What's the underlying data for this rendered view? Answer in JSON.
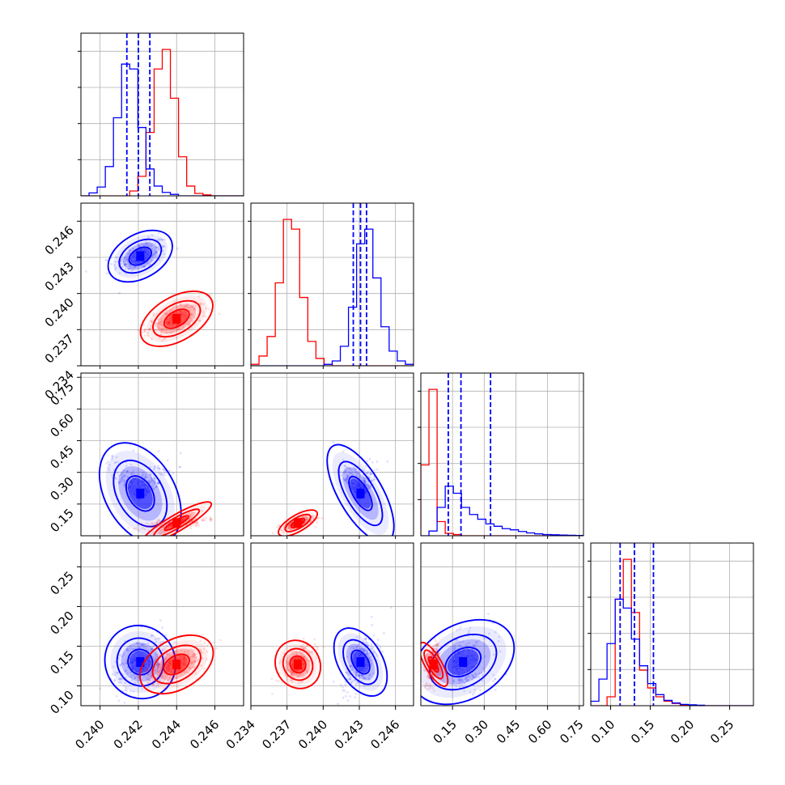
{
  "colors": {
    "series_a": "#0000ff",
    "series_b": "#ff0000",
    "grid": "#b0b0b0",
    "frame": "#000000"
  },
  "chart_data": {
    "type": "corner",
    "parameters": [
      "",
      "",
      "",
      ""
    ],
    "series": [
      {
        "color": "#0000ff",
        "means": [
          0.2421,
          0.2431,
          0.2,
          0.13
        ],
        "sds": [
          0.0007,
          0.0007,
          0.1,
          0.018
        ],
        "quantiles": [
          [
            0.2414,
            0.242,
            0.2426
          ],
          [
            0.2425,
            0.2431,
            0.2436
          ],
          [
            0.13,
            0.19,
            0.33
          ],
          [
            0.112,
            0.13,
            0.154
          ]
        ],
        "hist_fractions": [
          [
            0.0,
            0.006,
            0.018,
            0.06,
            0.16,
            0.27,
            0.26,
            0.14,
            0.055,
            0.02,
            0.007,
            0.003,
            0,
            0,
            0,
            0,
            0,
            0,
            0,
            0
          ],
          [
            0,
            0,
            0,
            0,
            0,
            0,
            0,
            0,
            0,
            0.003,
            0.01,
            0.04,
            0.12,
            0.25,
            0.28,
            0.18,
            0.08,
            0.03,
            0.01,
            0.003
          ],
          [
            0,
            0.02,
            0.12,
            0.21,
            0.18,
            0.12,
            0.09,
            0.07,
            0.05,
            0.04,
            0.03,
            0.025,
            0.018,
            0.012,
            0.008,
            0.005,
            0.004,
            0.003,
            0.002,
            0.001
          ],
          [
            0.01,
            0.06,
            0.14,
            0.24,
            0.22,
            0.15,
            0.09,
            0.05,
            0.025,
            0.012,
            0.006,
            0.003,
            0.002,
            0.001,
            0,
            0,
            0,
            0,
            0,
            0
          ]
        ]
      },
      {
        "color": "#ff0000",
        "means": [
          0.244,
          0.2379,
          0.06,
          0.127
        ],
        "sds": [
          0.0008,
          0.0007,
          0.015,
          0.012
        ],
        "quantiles": [],
        "hist_fractions": [
          [
            0,
            0,
            0,
            0,
            0,
            0,
            0.01,
            0.04,
            0.13,
            0.26,
            0.3,
            0.2,
            0.08,
            0.02,
            0.005,
            0.002,
            0,
            0,
            0,
            0
          ],
          [
            0.003,
            0.02,
            0.06,
            0.17,
            0.3,
            0.28,
            0.14,
            0.05,
            0.015,
            0.003,
            0,
            0,
            0,
            0,
            0,
            0,
            0,
            0,
            0,
            0
          ],
          [
            0.3,
            0.62,
            0.06,
            0.01,
            0.005,
            0,
            0,
            0,
            0,
            0,
            0,
            0,
            0,
            0,
            0,
            0,
            0,
            0,
            0,
            0
          ],
          [
            0,
            0,
            0.02,
            0.24,
            0.33,
            0.21,
            0.08,
            0.04,
            0.02,
            0.01,
            0.005,
            0.002,
            0,
            0,
            0,
            0,
            0,
            0,
            0,
            0
          ]
        ]
      }
    ],
    "ranges": [
      [
        0.239,
        0.2475
      ],
      [
        0.234,
        0.2475
      ],
      [
        0.0,
        0.77
      ],
      [
        0.075,
        0.28
      ]
    ],
    "tick_labels": [
      [
        "0.240",
        "0.242",
        "0.244",
        "0.246"
      ],
      [
        "0.234",
        "0.237",
        "0.240",
        "0.243",
        "0.246"
      ],
      [
        "0.15",
        "0.30",
        "0.45",
        "0.60",
        "0.75"
      ],
      [
        "0.10",
        "0.15",
        "0.20",
        "0.25"
      ]
    ],
    "tick_values": [
      [
        0.24,
        0.242,
        0.244,
        0.246
      ],
      [
        0.234,
        0.237,
        0.24,
        0.243,
        0.246
      ],
      [
        0.15,
        0.3,
        0.45,
        0.6,
        0.75
      ],
      [
        0.1,
        0.15,
        0.2,
        0.25
      ]
    ],
    "contour_levels": [
      0.39,
      0.86,
      0.99
    ],
    "grid": true,
    "title": "",
    "xlabel": "",
    "ylabel": ""
  }
}
